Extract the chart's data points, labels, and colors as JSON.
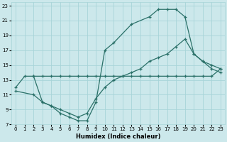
{
  "xlabel": "Humidex (Indice chaleur)",
  "bg_color": "#cce8eb",
  "grid_color": "#a8d4d8",
  "line_color": "#2a7068",
  "xlim": [
    -0.5,
    23.5
  ],
  "ylim": [
    7,
    23.5
  ],
  "xticks": [
    0,
    1,
    2,
    3,
    4,
    5,
    6,
    7,
    8,
    9,
    10,
    11,
    12,
    13,
    14,
    15,
    16,
    17,
    18,
    19,
    20,
    21,
    22,
    23
  ],
  "yticks": [
    7,
    9,
    11,
    13,
    15,
    17,
    19,
    21,
    23
  ],
  "line1_x": [
    0,
    1,
    2,
    3,
    4,
    5,
    6,
    7,
    8,
    9,
    10,
    11,
    13,
    15,
    16,
    17,
    18,
    19,
    20,
    21,
    22,
    23
  ],
  "line1_y": [
    12,
    13.5,
    13.5,
    10,
    9.5,
    8.5,
    8.0,
    7.5,
    7.5,
    10,
    17.0,
    18.0,
    20.5,
    21.5,
    22.5,
    22.5,
    22.5,
    21.5,
    16.5,
    15.5,
    14.5,
    14
  ],
  "line2_x": [
    0,
    2,
    3,
    4,
    5,
    6,
    7,
    8,
    9,
    10,
    11,
    12,
    13,
    14,
    15,
    16,
    17,
    18,
    19,
    20,
    21,
    22,
    23
  ],
  "line2_y": [
    11.5,
    11.0,
    10.0,
    9.5,
    9.0,
    8.5,
    8.0,
    8.5,
    10.5,
    12.0,
    13.0,
    13.5,
    14.0,
    14.5,
    15.5,
    16.0,
    16.5,
    17.5,
    18.5,
    16.5,
    15.5,
    15.0,
    14.5
  ],
  "line3_x": [
    2,
    3,
    4,
    5,
    6,
    7,
    8,
    9,
    10,
    11,
    12,
    13,
    14,
    15,
    16,
    17,
    18,
    19,
    20,
    21,
    22,
    23
  ],
  "line3_y": [
    13.5,
    13.5,
    13.5,
    13.5,
    13.5,
    13.5,
    13.5,
    13.5,
    13.5,
    13.5,
    13.5,
    13.5,
    13.5,
    13.5,
    13.5,
    13.5,
    13.5,
    13.5,
    13.5,
    13.5,
    13.5,
    14.5
  ]
}
